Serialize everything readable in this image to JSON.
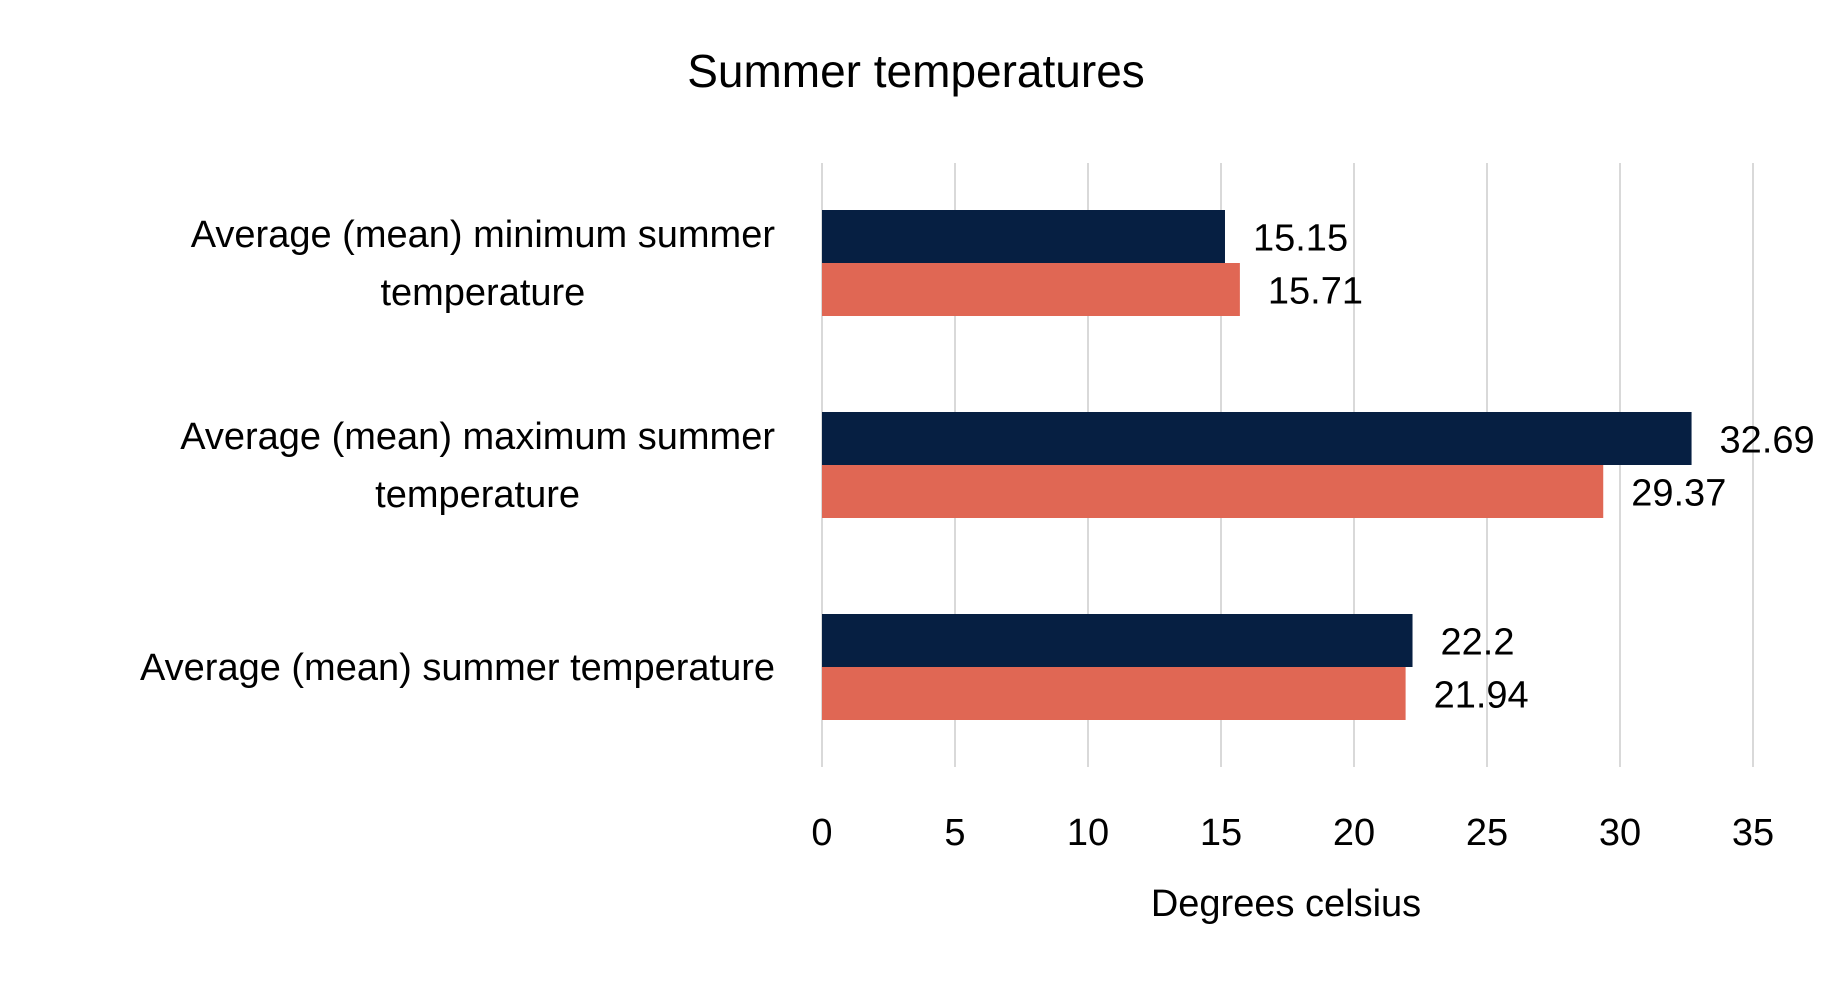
{
  "chart_data": {
    "type": "bar",
    "orientation": "horizontal",
    "title": "Summer temperatures",
    "xlabel": "Degrees celsius",
    "ylabel": "",
    "xlim": [
      0,
      35
    ],
    "x_ticks": [
      0,
      5,
      10,
      15,
      20,
      25,
      30,
      35
    ],
    "grid": true,
    "legend": "none",
    "categories": [
      [
        "Average (mean) minimum summer",
        "temperature"
      ],
      [
        "Average (mean) maximum summer",
        "temperature"
      ],
      [
        "Average (mean) summer temperature"
      ]
    ],
    "series": [
      {
        "color": "#061f42",
        "values": [
          15.15,
          32.69,
          22.2
        ],
        "labels": [
          "15.15",
          "32.69",
          "22.2"
        ]
      },
      {
        "color": "#e06754",
        "values": [
          15.71,
          29.37,
          21.94
        ],
        "labels": [
          "15.71",
          "29.37",
          "21.94"
        ]
      }
    ]
  }
}
